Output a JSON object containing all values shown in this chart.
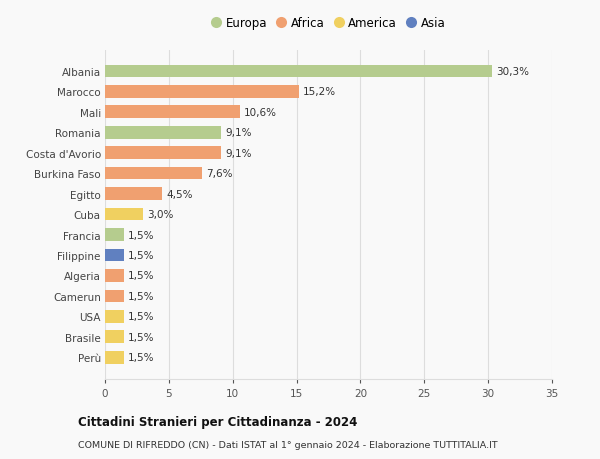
{
  "countries": [
    "Albania",
    "Marocco",
    "Mali",
    "Romania",
    "Costa d'Avorio",
    "Burkina Faso",
    "Egitto",
    "Cuba",
    "Francia",
    "Filippine",
    "Algeria",
    "Camerun",
    "USA",
    "Brasile",
    "Perù"
  ],
  "values": [
    30.3,
    15.2,
    10.6,
    9.1,
    9.1,
    7.6,
    4.5,
    3.0,
    1.5,
    1.5,
    1.5,
    1.5,
    1.5,
    1.5,
    1.5
  ],
  "labels": [
    "30,3%",
    "15,2%",
    "10,6%",
    "9,1%",
    "9,1%",
    "7,6%",
    "4,5%",
    "3,0%",
    "1,5%",
    "1,5%",
    "1,5%",
    "1,5%",
    "1,5%",
    "1,5%",
    "1,5%"
  ],
  "continents": [
    "Europa",
    "Africa",
    "Africa",
    "Europa",
    "Africa",
    "Africa",
    "Africa",
    "America",
    "Europa",
    "Asia",
    "Africa",
    "Africa",
    "America",
    "America",
    "America"
  ],
  "colors": {
    "Europa": "#b5cc8e",
    "Africa": "#f0a070",
    "America": "#f0d060",
    "Asia": "#6080c0"
  },
  "title1": "Cittadini Stranieri per Cittadinanza - 2024",
  "title2": "COMUNE DI RIFREDDO (CN) - Dati ISTAT al 1° gennaio 2024 - Elaborazione TUTTITALIA.IT",
  "xlim": [
    0,
    35
  ],
  "xticks": [
    0,
    5,
    10,
    15,
    20,
    25,
    30,
    35
  ],
  "background_color": "#f9f9f9",
  "grid_color": "#dddddd",
  "legend_order": [
    "Europa",
    "Africa",
    "America",
    "Asia"
  ]
}
